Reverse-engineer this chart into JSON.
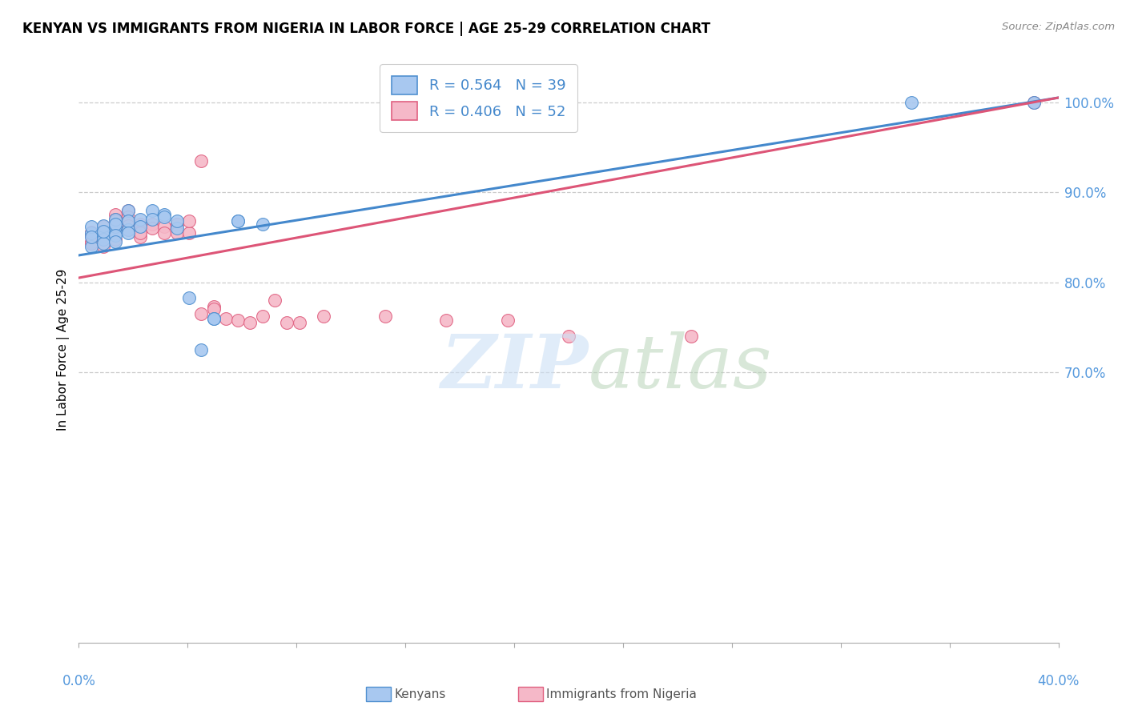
{
  "title": "KENYAN VS IMMIGRANTS FROM NIGERIA IN LABOR FORCE | AGE 25-29 CORRELATION CHART",
  "source": "Source: ZipAtlas.com",
  "ylabel": "In Labor Force | Age 25-29",
  "legend_blue": "R = 0.564   N = 39",
  "legend_pink": "R = 0.406   N = 52",
  "legend_label_blue": "Kenyans",
  "legend_label_pink": "Immigrants from Nigeria",
  "blue_color": "#a8c8f0",
  "pink_color": "#f5b8c8",
  "blue_edge_color": "#5090d0",
  "pink_edge_color": "#e06080",
  "blue_line_color": "#4488cc",
  "pink_line_color": "#dd5577",
  "blue_scatter": [
    [
      0.5,
      85.5
    ],
    [
      0.5,
      86.2
    ],
    [
      0.5,
      84.0
    ],
    [
      0.5,
      85.0
    ],
    [
      1.0,
      85.6
    ],
    [
      1.0,
      85.1
    ],
    [
      1.0,
      86.3
    ],
    [
      1.0,
      84.8
    ],
    [
      1.0,
      84.3
    ],
    [
      1.0,
      85.7
    ],
    [
      1.5,
      85.5
    ],
    [
      1.5,
      86.2
    ],
    [
      1.5,
      87.0
    ],
    [
      1.5,
      86.5
    ],
    [
      1.5,
      85.2
    ],
    [
      1.5,
      84.5
    ],
    [
      2.0,
      85.8
    ],
    [
      2.0,
      88.0
    ],
    [
      2.0,
      86.8
    ],
    [
      2.0,
      85.5
    ],
    [
      2.5,
      87.0
    ],
    [
      2.5,
      86.2
    ],
    [
      3.0,
      88.0
    ],
    [
      3.0,
      87.0
    ],
    [
      3.5,
      87.5
    ],
    [
      3.5,
      87.3
    ],
    [
      4.0,
      86.0
    ],
    [
      4.0,
      86.8
    ],
    [
      4.5,
      78.3
    ],
    [
      5.0,
      72.5
    ],
    [
      5.5,
      76.0
    ],
    [
      5.5,
      76.0
    ],
    [
      6.5,
      86.8
    ],
    [
      6.5,
      86.8
    ],
    [
      7.5,
      86.5
    ],
    [
      17.0,
      100.0
    ],
    [
      19.0,
      100.0
    ],
    [
      34.0,
      100.0
    ],
    [
      39.0,
      100.0
    ]
  ],
  "pink_scatter": [
    [
      0.5,
      84.5
    ],
    [
      0.5,
      85.2
    ],
    [
      0.5,
      85.6
    ],
    [
      0.5,
      84.3
    ],
    [
      1.0,
      85.0
    ],
    [
      1.0,
      85.5
    ],
    [
      1.0,
      86.2
    ],
    [
      1.0,
      84.8
    ],
    [
      1.0,
      84.0
    ],
    [
      1.0,
      85.6
    ],
    [
      1.5,
      87.5
    ],
    [
      1.5,
      87.0
    ],
    [
      1.5,
      86.8
    ],
    [
      1.5,
      86.2
    ],
    [
      1.5,
      85.8
    ],
    [
      1.5,
      85.5
    ],
    [
      1.5,
      84.8
    ],
    [
      2.0,
      88.0
    ],
    [
      2.0,
      87.3
    ],
    [
      2.0,
      86.8
    ],
    [
      2.0,
      86.3
    ],
    [
      2.0,
      85.8
    ],
    [
      2.5,
      86.5
    ],
    [
      2.5,
      85.7
    ],
    [
      2.5,
      85.0
    ],
    [
      2.5,
      85.5
    ],
    [
      3.0,
      86.5
    ],
    [
      3.0,
      86.0
    ],
    [
      3.5,
      86.2
    ],
    [
      3.5,
      85.5
    ],
    [
      4.0,
      86.5
    ],
    [
      4.0,
      85.5
    ],
    [
      4.5,
      85.5
    ],
    [
      4.5,
      86.8
    ],
    [
      5.0,
      93.5
    ],
    [
      5.0,
      76.5
    ],
    [
      5.5,
      77.3
    ],
    [
      5.5,
      77.0
    ],
    [
      6.0,
      76.0
    ],
    [
      6.5,
      75.8
    ],
    [
      7.0,
      75.5
    ],
    [
      7.5,
      76.2
    ],
    [
      8.0,
      78.0
    ],
    [
      8.5,
      75.5
    ],
    [
      9.0,
      75.5
    ],
    [
      10.0,
      76.2
    ],
    [
      12.5,
      76.2
    ],
    [
      15.0,
      75.8
    ],
    [
      17.5,
      75.8
    ],
    [
      20.0,
      74.0
    ],
    [
      25.0,
      74.0
    ],
    [
      39.0,
      100.0
    ]
  ],
  "xlim": [
    0,
    40
  ],
  "ylim": [
    40,
    105
  ],
  "yticks": [
    100,
    90,
    80,
    70
  ],
  "xticks_minor": [
    0,
    4.44,
    8.89,
    13.33,
    17.78,
    22.22,
    26.67,
    31.11,
    35.56,
    40.0
  ],
  "blue_line_x": [
    0,
    40
  ],
  "blue_line_y": [
    83.0,
    100.5
  ],
  "pink_line_x": [
    0,
    40
  ],
  "pink_line_y": [
    80.5,
    100.5
  ]
}
